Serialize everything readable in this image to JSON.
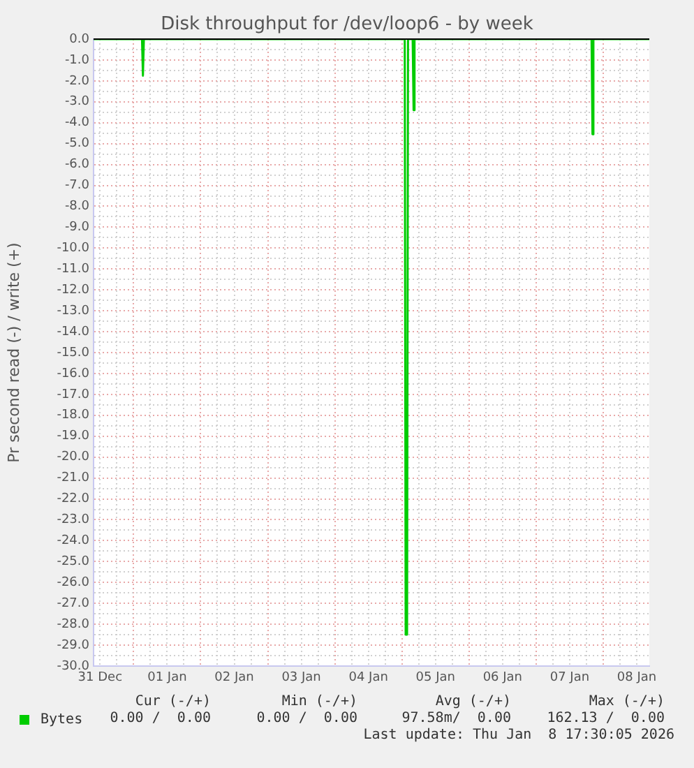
{
  "chart_data": {
    "type": "line",
    "title": "Disk throughput for /dev/loop6 - by week",
    "ylabel": "Pr second read (-) / write (+)",
    "xlim": [
      "2025-12-31T09:40",
      "2026-01-08T16:30"
    ],
    "xticks": [
      {
        "value": "2025-12-31T12:00",
        "label": "31 Dec"
      },
      {
        "value": "2025-12-31T18:00",
        "label": null
      },
      {
        "value": "2026-01-01T00:00",
        "label": null
      },
      {
        "value": "2026-01-01T06:00",
        "label": null
      },
      {
        "value": "2026-01-01T12:00",
        "label": "01 Jan"
      },
      {
        "value": "2026-01-01T18:00",
        "label": null
      },
      {
        "value": "2026-01-02T00:00",
        "label": null
      },
      {
        "value": "2026-01-02T06:00",
        "label": null
      },
      {
        "value": "2026-01-02T12:00",
        "label": "02 Jan"
      },
      {
        "value": "2026-01-02T18:00",
        "label": null
      },
      {
        "value": "2026-01-03T00:00",
        "label": null
      },
      {
        "value": "2026-01-03T06:00",
        "label": null
      },
      {
        "value": "2026-01-03T12:00",
        "label": "03 Jan"
      },
      {
        "value": "2026-01-03T18:00",
        "label": null
      },
      {
        "value": "2026-01-04T00:00",
        "label": null
      },
      {
        "value": "2026-01-04T06:00",
        "label": null
      },
      {
        "value": "2026-01-04T12:00",
        "label": "04 Jan"
      },
      {
        "value": "2026-01-04T18:00",
        "label": null
      },
      {
        "value": "2026-01-05T00:00",
        "label": null
      },
      {
        "value": "2026-01-05T06:00",
        "label": null
      },
      {
        "value": "2026-01-05T12:00",
        "label": "05 Jan"
      },
      {
        "value": "2026-01-05T18:00",
        "label": null
      },
      {
        "value": "2026-01-06T00:00",
        "label": null
      },
      {
        "value": "2026-01-06T06:00",
        "label": null
      },
      {
        "value": "2026-01-06T12:00",
        "label": "06 Jan"
      },
      {
        "value": "2026-01-06T18:00",
        "label": null
      },
      {
        "value": "2026-01-07T00:00",
        "label": null
      },
      {
        "value": "2026-01-07T06:00",
        "label": null
      },
      {
        "value": "2026-01-07T12:00",
        "label": "07 Jan"
      },
      {
        "value": "2026-01-07T18:00",
        "label": null
      },
      {
        "value": "2026-01-08T00:00",
        "label": null
      },
      {
        "value": "2026-01-08T06:00",
        "label": null
      },
      {
        "value": "2026-01-08T12:00",
        "label": "08 Jan"
      }
    ],
    "ylim": [
      -30,
      0
    ],
    "yticks": [
      {
        "value": -30,
        "label": "-30.0"
      },
      {
        "value": -29.5,
        "label": null
      },
      {
        "value": -29,
        "label": "-29.0"
      },
      {
        "value": -28.5,
        "label": null
      },
      {
        "value": -28,
        "label": "-28.0"
      },
      {
        "value": -27.5,
        "label": null
      },
      {
        "value": -27,
        "label": "-27.0"
      },
      {
        "value": -26.5,
        "label": null
      },
      {
        "value": -26,
        "label": "-26.0"
      },
      {
        "value": -25.5,
        "label": null
      },
      {
        "value": -25,
        "label": "-25.0"
      },
      {
        "value": -24.5,
        "label": null
      },
      {
        "value": -24,
        "label": "-24.0"
      },
      {
        "value": -23.5,
        "label": null
      },
      {
        "value": -23,
        "label": "-23.0"
      },
      {
        "value": -22.5,
        "label": null
      },
      {
        "value": -22,
        "label": "-22.0"
      },
      {
        "value": -21.5,
        "label": null
      },
      {
        "value": -21,
        "label": "-21.0"
      },
      {
        "value": -20.5,
        "label": null
      },
      {
        "value": -20,
        "label": "-20.0"
      },
      {
        "value": -19.5,
        "label": null
      },
      {
        "value": -19,
        "label": "-19.0"
      },
      {
        "value": -18.5,
        "label": null
      },
      {
        "value": -18,
        "label": "-18.0"
      },
      {
        "value": -17.5,
        "label": null
      },
      {
        "value": -17,
        "label": "-17.0"
      },
      {
        "value": -16.5,
        "label": null
      },
      {
        "value": -16,
        "label": "-16.0"
      },
      {
        "value": -15.5,
        "label": null
      },
      {
        "value": -15,
        "label": "-15.0"
      },
      {
        "value": -14.5,
        "label": null
      },
      {
        "value": -14,
        "label": "-14.0"
      },
      {
        "value": -13.5,
        "label": null
      },
      {
        "value": -13,
        "label": "-13.0"
      },
      {
        "value": -12.5,
        "label": null
      },
      {
        "value": -12,
        "label": "-12.0"
      },
      {
        "value": -11.5,
        "label": null
      },
      {
        "value": -11,
        "label": "-11.0"
      },
      {
        "value": -10.5,
        "label": null
      },
      {
        "value": -10,
        "label": "-10.0"
      },
      {
        "value": -9.5,
        "label": null
      },
      {
        "value": -9,
        "label": "-9.0"
      },
      {
        "value": -8.5,
        "label": null
      },
      {
        "value": -8,
        "label": "-8.0"
      },
      {
        "value": -7.5,
        "label": null
      },
      {
        "value": -7,
        "label": "-7.0"
      },
      {
        "value": -6.5,
        "label": null
      },
      {
        "value": -6,
        "label": "-6.0"
      },
      {
        "value": -5.5,
        "label": null
      },
      {
        "value": -5,
        "label": "-5.0"
      },
      {
        "value": -4.5,
        "label": null
      },
      {
        "value": -4,
        "label": "-4.0"
      },
      {
        "value": -3.5,
        "label": null
      },
      {
        "value": -3,
        "label": "-3.0"
      },
      {
        "value": -2.5,
        "label": null
      },
      {
        "value": -2,
        "label": "-2.0"
      },
      {
        "value": -1.5,
        "label": null
      },
      {
        "value": -1,
        "label": "-1.0"
      },
      {
        "value": -0.5,
        "label": null
      },
      {
        "value": 0,
        "label": "0.0"
      }
    ],
    "grid": true,
    "marker": "none",
    "legend": "bottom left",
    "ref_lines": [
      {
        "axis": "y",
        "value": 0,
        "label": null,
        "color": "#000000"
      }
    ],
    "series": [
      {
        "name": "Bytes",
        "color": "#00cc00",
        "x": [
          "2025-12-31T09:40",
          "2026-01-01T03:00",
          "2026-01-01T03:20",
          "2026-01-01T03:40",
          "2026-01-05T01:00",
          "2026-01-05T01:20",
          "2026-01-05T01:50",
          "2026-01-05T02:10",
          "2026-01-05T03:50",
          "2026-01-05T04:10",
          "2026-01-05T04:30",
          "2026-01-07T19:50",
          "2026-01-07T20:10",
          "2026-01-07T20:30",
          "2026-01-08T16:30"
        ],
        "values": [
          0,
          0,
          -1.75,
          0,
          0,
          -28.5,
          -28.5,
          0,
          0,
          -3.4,
          0,
          0,
          -4.55,
          0,
          0
        ]
      }
    ],
    "annotations": [
      "Cur (-/+)",
      "Min (-/+)",
      "Avg (-/+)",
      "Max (-/+)",
      "0.00 /  0.00",
      "0.00 /  0.00",
      "97.58m/  0.00",
      "162.13 /  0.00",
      "Last update: Thu Jan  8 17:30:05 2026"
    ]
  }
}
